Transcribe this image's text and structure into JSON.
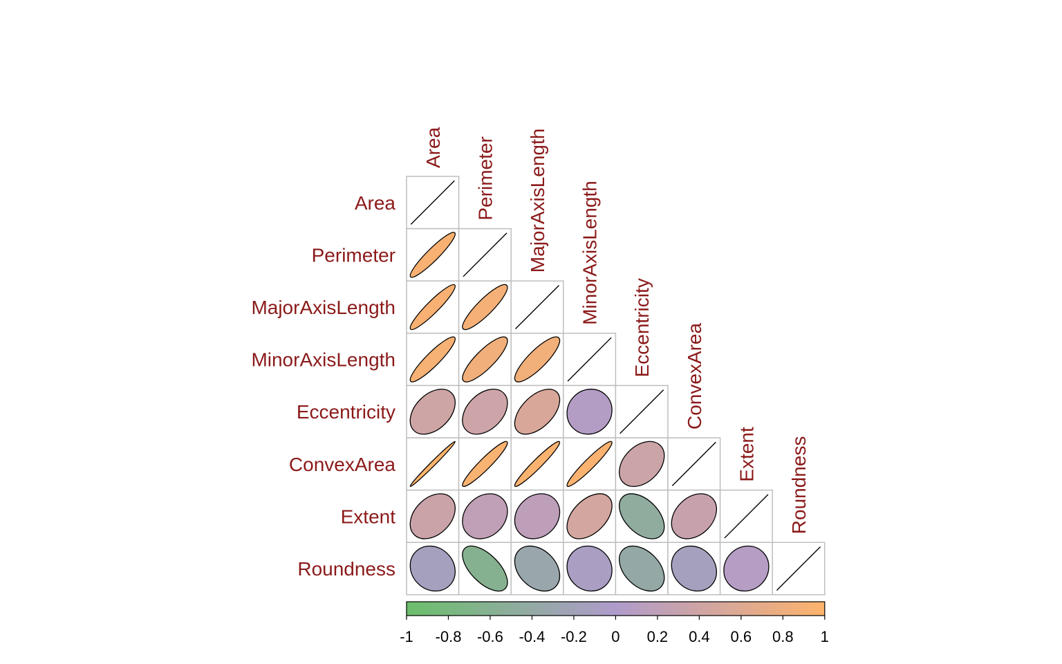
{
  "chart_data": {
    "type": "heatmap",
    "variables": [
      "Area",
      "Perimeter",
      "MajorAxisLength",
      "MinorAxisLength",
      "Eccentricity",
      "ConvexArea",
      "Extent",
      "Roundness"
    ],
    "matrix": [
      [
        1.0,
        0.93,
        0.93,
        0.91,
        0.4,
        0.99,
        0.35,
        -0.13
      ],
      [
        0.93,
        1.0,
        0.88,
        0.83,
        0.38,
        0.94,
        0.22,
        -0.61
      ],
      [
        0.93,
        0.88,
        1.0,
        0.84,
        0.52,
        0.96,
        0.18,
        -0.32
      ],
      [
        0.91,
        0.83,
        0.84,
        1.0,
        0.07,
        0.95,
        0.46,
        -0.08
      ],
      [
        0.4,
        0.38,
        0.52,
        0.07,
        1.0,
        0.36,
        -0.46,
        -0.4
      ],
      [
        0.99,
        0.94,
        0.96,
        0.95,
        0.36,
        1.0,
        0.31,
        -0.15
      ],
      [
        0.35,
        0.22,
        0.18,
        0.46,
        -0.46,
        0.31,
        1.0,
        0.08
      ],
      [
        -0.13,
        -0.61,
        -0.32,
        -0.08,
        -0.4,
        -0.15,
        0.08,
        1.0
      ]
    ],
    "layout": "lower-triangle",
    "method": "ellipse",
    "colorbar": {
      "range": [
        -1,
        1
      ],
      "ticks": [
        "-1",
        "-0.8",
        "-0.6",
        "-0.4",
        "-0.2",
        "0",
        "0.2",
        "0.4",
        "0.6",
        "0.8",
        "1"
      ],
      "colors": [
        "#6BBF6B",
        "#AF9BCB",
        "#FDB36B"
      ]
    },
    "label_color": "#8B1A1A"
  }
}
